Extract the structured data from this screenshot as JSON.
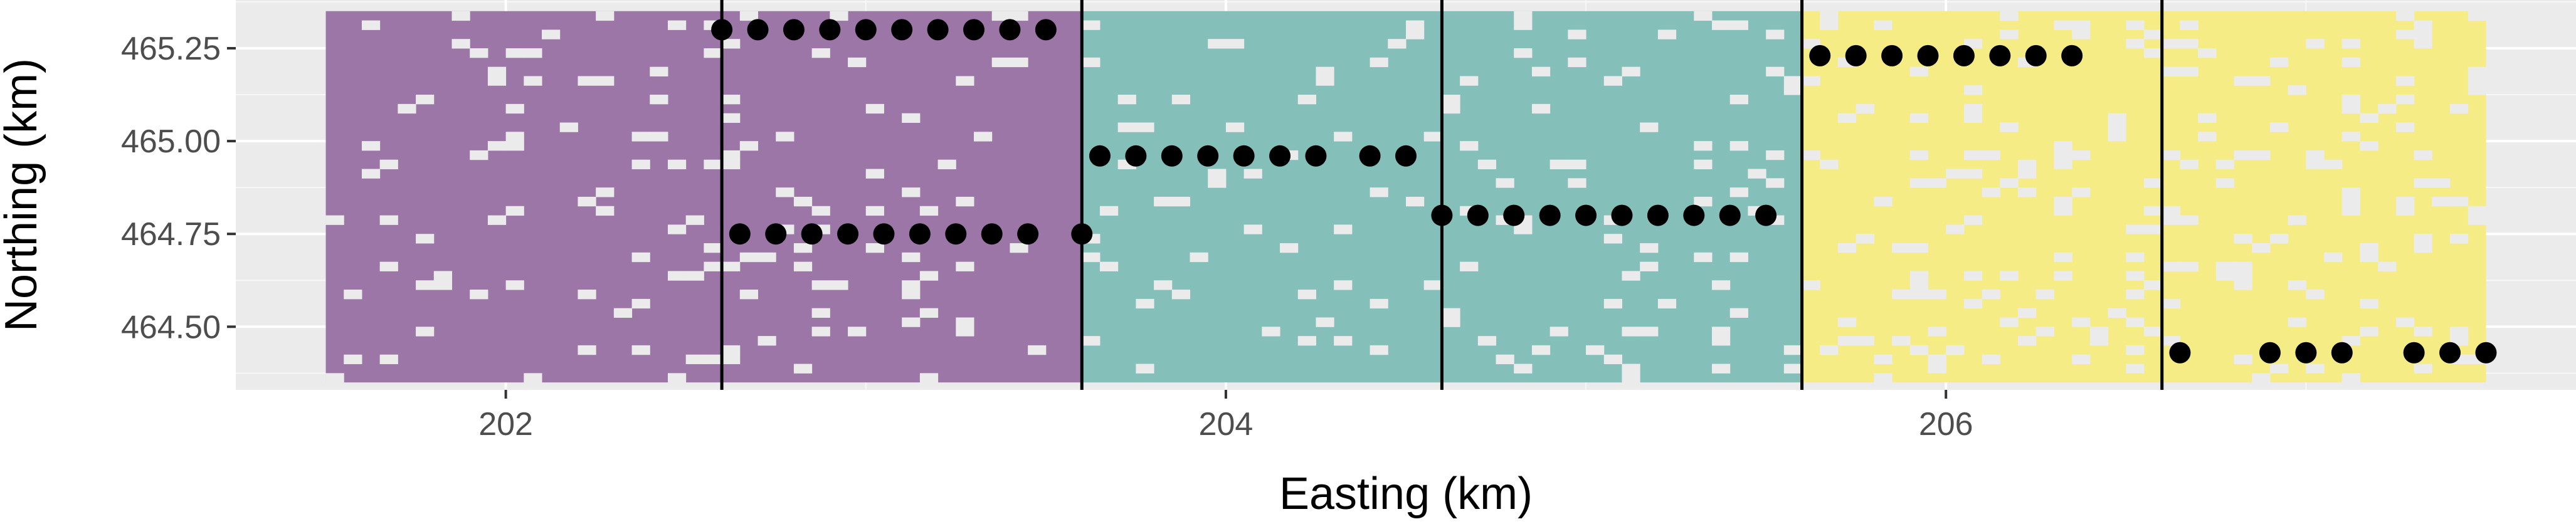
{
  "chart_data": {
    "type": "scatter",
    "title": "",
    "xlabel": "Easting (km)",
    "ylabel": "Northing (km)",
    "xlim": [
      201.25,
      207.75
    ],
    "ylim": [
      464.33,
      465.38
    ],
    "x_ticks": [
      202,
      204,
      206
    ],
    "x_tick_labels": [
      "202",
      "204",
      "206"
    ],
    "y_ticks": [
      464.5,
      464.75,
      465.0,
      465.25
    ],
    "y_tick_labels": [
      "464.50",
      "464.75",
      "465.00",
      "465.25"
    ],
    "grid": true,
    "legend": "none",
    "raster": {
      "description_of_layer": "land-cover cells coloured by block, with small gaps",
      "x_extent": [
        201.5,
        207.5
      ],
      "y_extent": [
        464.35,
        465.35
      ],
      "blocks": [
        {
          "x_range": [
            201.5,
            203.6
          ],
          "color": "#9b76a6"
        },
        {
          "x_range": [
            203.6,
            205.6
          ],
          "color": "#84bfba"
        },
        {
          "x_range": [
            205.6,
            207.5
          ],
          "color": "#f5ec86"
        }
      ]
    },
    "block_boundaries": [
      202.6,
      203.6,
      204.6,
      205.6,
      206.6
    ],
    "series": [
      {
        "x": [
          202.6,
          202.7,
          202.8,
          202.9,
          203.0,
          203.1,
          203.2,
          203.3,
          203.4,
          203.5,
          202.65,
          202.75,
          202.85,
          202.95,
          203.05,
          203.15,
          203.25,
          203.35,
          203.45,
          203.6,
          203.65,
          203.75,
          203.85,
          203.95,
          204.05,
          204.15,
          204.25,
          204.4,
          204.5,
          204.6,
          204.7,
          204.8,
          204.9,
          205.0,
          205.1,
          205.2,
          205.3,
          205.4,
          205.5,
          205.65,
          205.75,
          205.85,
          205.95,
          206.05,
          206.15,
          206.25,
          206.35,
          206.65,
          206.9,
          207.0,
          207.1,
          207.3,
          207.4,
          207.5
        ],
        "y": [
          465.3,
          465.3,
          465.3,
          465.3,
          465.3,
          465.3,
          465.3,
          465.3,
          465.3,
          465.3,
          464.75,
          464.75,
          464.75,
          464.75,
          464.75,
          464.75,
          464.75,
          464.75,
          464.75,
          464.75,
          464.96,
          464.96,
          464.96,
          464.96,
          464.96,
          464.96,
          464.96,
          464.96,
          464.96,
          464.8,
          464.8,
          464.8,
          464.8,
          464.8,
          464.8,
          464.8,
          464.8,
          464.8,
          464.8,
          465.23,
          465.23,
          465.23,
          465.23,
          465.23,
          465.23,
          465.23,
          465.23,
          464.43,
          464.43,
          464.43,
          464.43,
          464.43,
          464.43,
          464.43
        ],
        "color": "#000000"
      }
    ]
  }
}
